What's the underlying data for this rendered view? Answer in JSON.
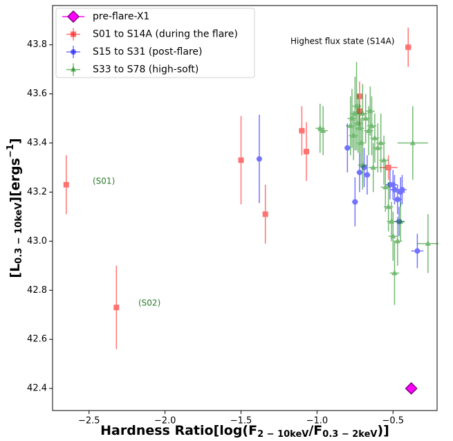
{
  "chart_data": {
    "type": "scatter",
    "xlabel": [
      "Hardness Ratio[log(F",
      "2 − 10keV",
      "/F",
      "0.3 − 2keV",
      ")]"
    ],
    "ylabel": [
      "[L",
      "0.3 − 10keV",
      "][ergs",
      "−1",
      "]"
    ],
    "xlim": [
      -2.74,
      -0.21
    ],
    "ylim": [
      42.31,
      43.96
    ],
    "xticks": [
      {
        "value": -2.5,
        "label": "−2.5"
      },
      {
        "value": -2,
        "label": "−2.0"
      },
      {
        "value": -1.5,
        "label": "−1.5"
      },
      {
        "value": -1,
        "label": "−1.0"
      },
      {
        "value": -0.5,
        "label": "−0.5"
      }
    ],
    "yticks": [
      42.4,
      42.6,
      42.8,
      {
        "value": 43,
        "label": "43.0"
      },
      43.2,
      43.4,
      43.6,
      43.8
    ],
    "grid": false,
    "legend": "upper left",
    "annotations": [
      "Highest flux state (S14A)",
      "(S01)",
      "(S02)"
    ],
    "series": [
      {
        "name": "pre-flare-X1",
        "color": "#ff00ff",
        "marker": "diamond",
        "x": [
          -0.38
        ],
        "y": [
          42.4
        ],
        "xerr": [
          0
        ],
        "yerr": [
          0
        ]
      },
      {
        "name": "S01 to S14A (during the flare)",
        "color": "#ff0000",
        "marker": "square",
        "x": [
          -2.65,
          -2.32,
          -1.5,
          -1.34,
          -1.1,
          -1.07,
          -0.72,
          -0.72,
          -0.53,
          -0.4
        ],
        "y": [
          43.23,
          42.73,
          43.33,
          43.11,
          43.45,
          43.365,
          43.59,
          43.53,
          43.3,
          43.79
        ],
        "xerr": [
          0.01,
          0.01,
          0.01,
          0.01,
          0.02,
          0.02,
          0.02,
          0.02,
          0.06,
          0.02
        ],
        "yerr": [
          0.12,
          0.17,
          0.18,
          0.12,
          0.1,
          0.12,
          0.06,
          0.06,
          0.05,
          0.08
        ]
      },
      {
        "name": "S15 to S31 (post-flare)",
        "color": "#0000ff",
        "marker": "circle",
        "x": [
          -1.38,
          -0.8,
          -0.75,
          -0.72,
          -0.69,
          -0.67,
          -0.52,
          -0.5,
          -0.49,
          -0.47,
          -0.46,
          -0.45,
          -0.44,
          -0.34
        ],
        "y": [
          43.335,
          43.38,
          43.16,
          43.28,
          43.3,
          43.27,
          43.23,
          43.23,
          43.21,
          43.17,
          43.08,
          43.2,
          43.21,
          42.96
        ],
        "xerr": [
          0.01,
          0.02,
          0.02,
          0.02,
          0.02,
          0.02,
          0.03,
          0.03,
          0.03,
          0.03,
          0.03,
          0.03,
          0.03,
          0.04
        ],
        "yerr": [
          0.18,
          0.1,
          0.1,
          0.08,
          0.08,
          0.08,
          0.06,
          0.06,
          0.06,
          0.06,
          0.06,
          0.06,
          0.06,
          0.07
        ]
      },
      {
        "name": "S33 to S78 (high-soft)",
        "color": "#008000",
        "marker": "triangle",
        "x": [
          -0.98,
          -0.96,
          -0.78,
          -0.77,
          -0.76,
          -0.75,
          -0.74,
          -0.73,
          -0.72,
          -0.71,
          -0.7,
          -0.68,
          -0.66,
          -0.65,
          -0.64,
          -0.62,
          -0.6,
          -0.58,
          -0.56,
          -0.55,
          -0.53,
          -0.51,
          -0.5,
          -0.49,
          -0.45,
          -0.37,
          -0.27,
          -0.7,
          -0.63,
          -0.47
        ],
        "y": [
          43.46,
          43.45,
          43.47,
          43.5,
          43.43,
          43.52,
          43.55,
          43.48,
          43.46,
          43.4,
          43.52,
          43.5,
          43.45,
          43.53,
          43.47,
          43.42,
          43.38,
          43.4,
          43.33,
          43.22,
          43.14,
          43.08,
          43.02,
          42.87,
          43.08,
          43.4,
          42.99,
          43.31,
          43.3,
          43.0
        ],
        "xerr": [
          0.03,
          0.03,
          0.03,
          0.03,
          0.03,
          0.03,
          0.03,
          0.03,
          0.03,
          0.03,
          0.03,
          0.03,
          0.03,
          0.03,
          0.03,
          0.03,
          0.03,
          0.03,
          0.03,
          0.03,
          0.03,
          0.03,
          0.03,
          0.03,
          0.03,
          0.1,
          0.07,
          0.03,
          0.03,
          0.03
        ],
        "yerr": [
          0.1,
          0.1,
          0.12,
          0.12,
          0.1,
          0.15,
          0.18,
          0.12,
          0.1,
          0.1,
          0.12,
          0.1,
          0.1,
          0.1,
          0.12,
          0.1,
          0.1,
          0.12,
          0.1,
          0.1,
          0.1,
          0.08,
          0.1,
          0.13,
          0.08,
          0.15,
          0.12,
          0.1,
          0.1,
          0.1
        ]
      }
    ]
  }
}
